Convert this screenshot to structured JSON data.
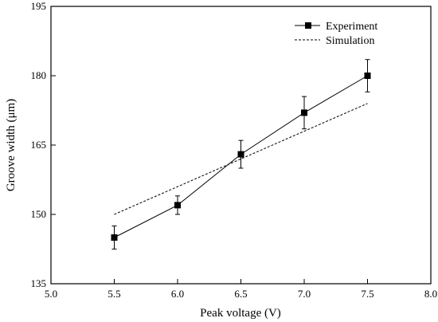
{
  "chart_data": {
    "type": "line",
    "xlabel": "Peak voltage (V)",
    "ylabel": "Groove width (μm)",
    "xlim": [
      5.0,
      8.0
    ],
    "ylim": [
      135,
      195
    ],
    "xticks": [
      "5.0",
      "5.5",
      "6.0",
      "6.5",
      "7.0",
      "7.5",
      "8.0"
    ],
    "yticks": [
      "135",
      "150",
      "165",
      "180",
      "195"
    ],
    "grid": false,
    "legend_position": "top-right",
    "series": [
      {
        "name": "Experiment",
        "style": "solid-square-markers-errorbars",
        "x": [
          5.5,
          6.0,
          6.5,
          7.0,
          7.5
        ],
        "y": [
          145.0,
          152.0,
          163.0,
          172.0,
          180.0
        ],
        "error": [
          2.5,
          2.0,
          3.0,
          3.5,
          3.5
        ]
      },
      {
        "name": "Simulation",
        "style": "dashed",
        "x": [
          5.5,
          7.5
        ],
        "y": [
          150.0,
          174.0
        ]
      }
    ]
  }
}
